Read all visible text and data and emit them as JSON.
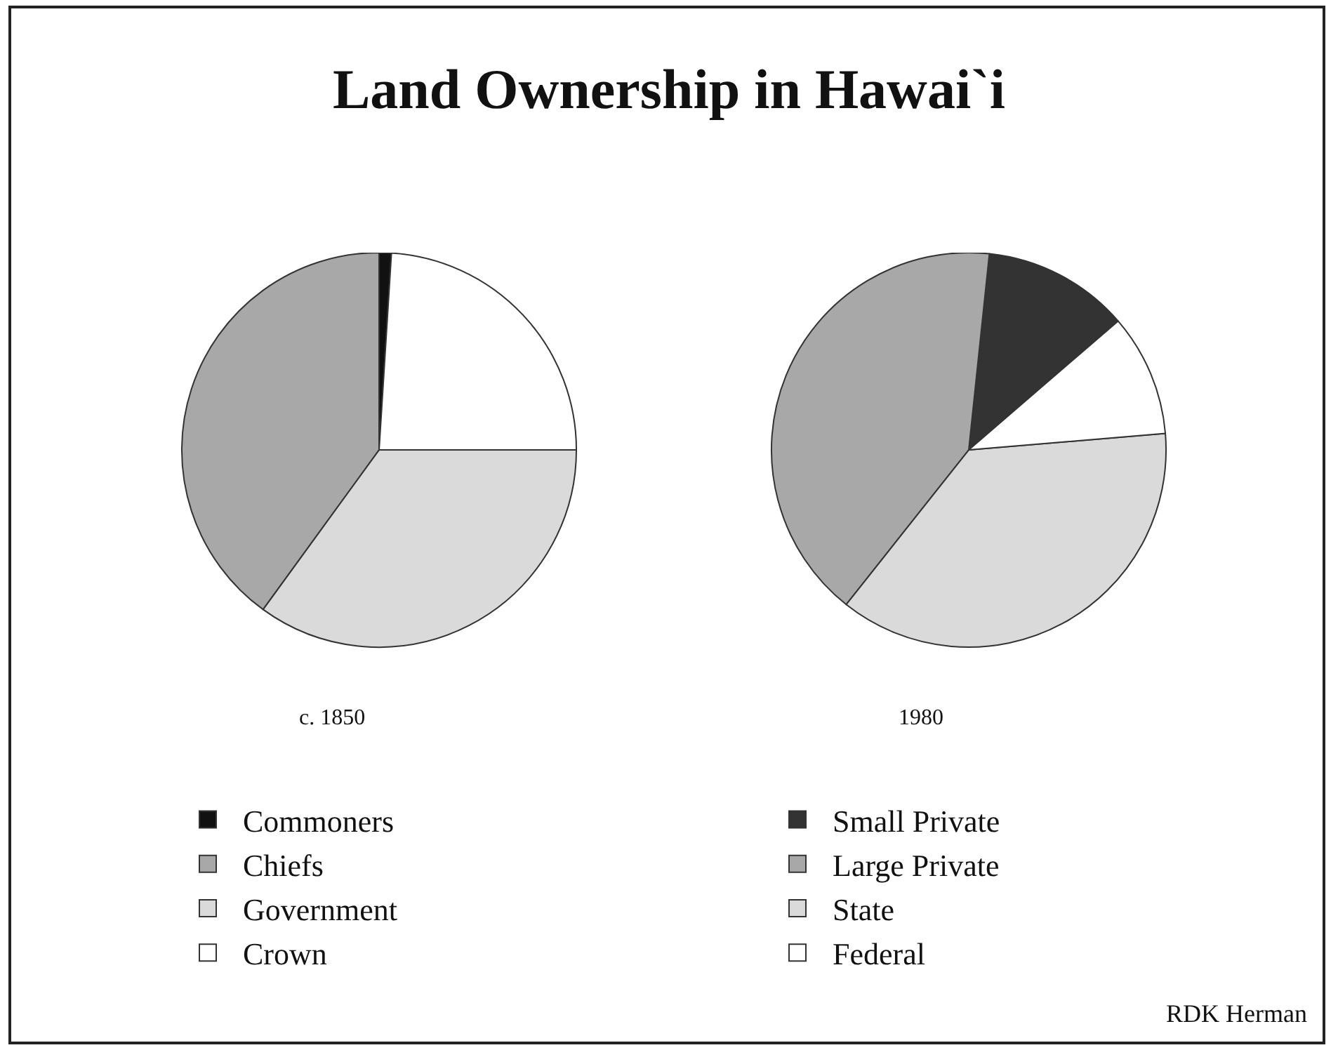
{
  "chart_data": [
    {
      "type": "pie",
      "title": "Land Ownership in Hawai`i",
      "subtitle": "c. 1850",
      "categories": [
        "Commoners",
        "Chiefs",
        "Government",
        "Crown"
      ],
      "values": [
        1,
        40,
        35,
        24
      ],
      "colors": [
        "#111111",
        "#a8a8a8",
        "#dadada",
        "#ffffff"
      ],
      "legend": "bottom"
    },
    {
      "type": "pie",
      "subtitle": "1980",
      "categories": [
        "Small Private",
        "Large Private",
        "State",
        "Federal"
      ],
      "values": [
        12,
        41,
        37,
        10
      ],
      "colors": [
        "#333333",
        "#a8a8a8",
        "#dadada",
        "#ffffff"
      ],
      "legend": "bottom",
      "annotations": [
        "RDK Herman"
      ]
    }
  ]
}
